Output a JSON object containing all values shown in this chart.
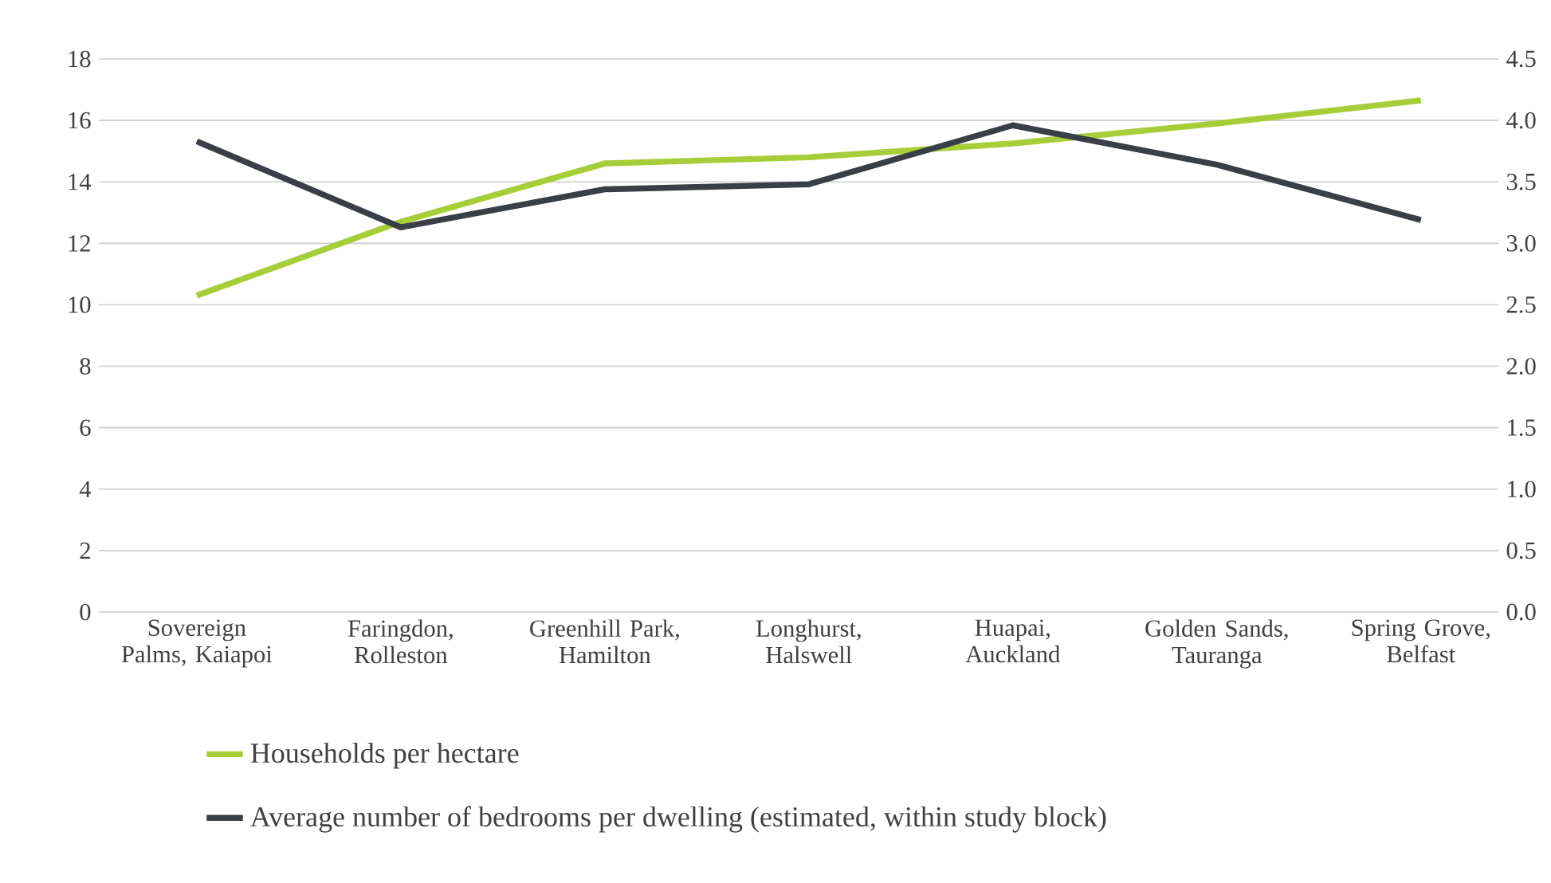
{
  "chart_data": {
    "type": "line",
    "categories": [
      "Sovereign Palms, Kaiapoi",
      "Faringdon, Rolleston",
      "Greenhill Park, Hamilton",
      "Longhurst, Halswell",
      "Huapai, Auckland",
      "Golden Sands, Tauranga",
      "Spring Grove, Belfast"
    ],
    "series": [
      {
        "name": "Households per hectare",
        "color": "#a6ce39",
        "values": [
          10.3,
          12.7,
          14.6,
          14.8,
          15.25,
          15.9,
          16.65
        ]
      },
      {
        "name": "Average number of bedrooms per dwelling (estimated, within study block)",
        "color": "#3a3f47",
        "axis": "y2",
        "values": [
          3.83,
          3.13,
          3.44,
          3.48,
          3.96,
          3.64,
          3.19
        ]
      }
    ],
    "ylim": [
      0,
      18
    ],
    "yticks": [
      0,
      2,
      4,
      6,
      8,
      10,
      12,
      14,
      16,
      18
    ],
    "y2lim": [
      0,
      4.5
    ],
    "y2ticks": [
      {
        "value": 0,
        "label": "0.0"
      },
      {
        "value": 0.5,
        "label": "0.5"
      },
      {
        "value": 1,
        "label": "1.0"
      },
      {
        "value": 1.5,
        "label": "1.5"
      },
      {
        "value": 2,
        "label": "2.0"
      },
      {
        "value": 2.5,
        "label": "2.5"
      },
      {
        "value": 3,
        "label": "3.0"
      },
      {
        "value": 3.5,
        "label": "3.5"
      },
      {
        "value": 4,
        "label": "4.0"
      },
      {
        "value": 4.5,
        "label": "4.5"
      }
    ],
    "grid": "y",
    "legend": "bottom",
    "marker": "none",
    "line_style": "solid"
  }
}
